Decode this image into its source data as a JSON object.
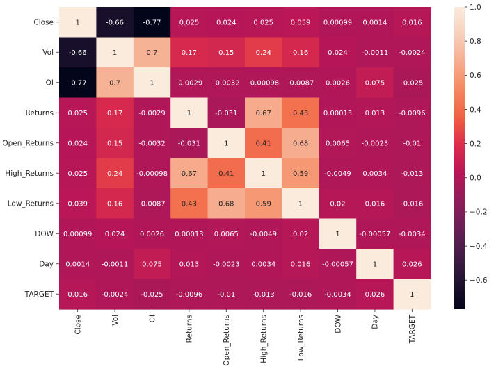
{
  "chart_data": {
    "type": "heatmap",
    "title": "",
    "xlabel": "",
    "ylabel": "",
    "labels": [
      "Close",
      "Vol",
      "OI",
      "Returns",
      "Open_Returns",
      "High_Returns",
      "Low_Returns",
      "DOW",
      "Day",
      "TARGET"
    ],
    "cell_text": [
      [
        "1",
        "-0.66",
        "-0.77",
        "0.025",
        "0.024",
        "0.025",
        "0.039",
        "0.00099",
        "0.0014",
        "0.016"
      ],
      [
        "-0.66",
        "1",
        "0.7",
        "0.17",
        "0.15",
        "0.24",
        "0.16",
        "0.024",
        "-0.0011",
        "-0.0024"
      ],
      [
        "-0.77",
        "0.7",
        "1",
        "-0.0029",
        "-0.0032",
        "-0.00098",
        "-0.0087",
        "0.0026",
        "0.075",
        "-0.025"
      ],
      [
        "0.025",
        "0.17",
        "-0.0029",
        "1",
        "-0.031",
        "0.67",
        "0.43",
        "0.00013",
        "0.013",
        "-0.0096"
      ],
      [
        "0.024",
        "0.15",
        "-0.0032",
        "-0.031",
        "1",
        "0.41",
        "0.68",
        "0.0065",
        "-0.0023",
        "-0.01"
      ],
      [
        "0.025",
        "0.24",
        "-0.00098",
        "0.67",
        "0.41",
        "1",
        "0.59",
        "-0.0049",
        "0.0034",
        "-0.013"
      ],
      [
        "0.039",
        "0.16",
        "-0.0087",
        "0.43",
        "0.68",
        "0.59",
        "1",
        "0.02",
        "0.016",
        "-0.016"
      ],
      [
        "0.00099",
        "0.024",
        "0.0026",
        "0.00013",
        "0.0065",
        "-0.0049",
        "0.02",
        "1",
        "-0.00057",
        "-0.0034"
      ],
      [
        "0.0014",
        "-0.0011",
        "0.075",
        "0.013",
        "-0.0023",
        "0.0034",
        "0.016",
        "-0.00057",
        "1",
        "0.026"
      ],
      [
        "0.016",
        "-0.0024",
        "-0.025",
        "-0.0096",
        "-0.01",
        "-0.013",
        "-0.016",
        "-0.0034",
        "0.026",
        "1"
      ]
    ],
    "colorbar": {
      "range": [
        -0.77,
        1.0
      ],
      "ticks": [
        -0.6,
        -0.4,
        -0.2,
        0.0,
        0.2,
        0.4,
        0.6,
        0.8,
        1.0
      ],
      "tick_labels": [
        "−0.6",
        "−0.4",
        "−0.2",
        "0.0",
        "0.2",
        "0.4",
        "0.6",
        "0.8",
        "1.0"
      ],
      "colormap": "rocket",
      "stops": [
        "#03051a",
        "#221331",
        "#451c47",
        "#6a1f56",
        "#921c5b",
        "#b91657",
        "#dc2d4b",
        "#f06043",
        "#f58860",
        "#f6ad8f",
        "#f7d0b9",
        "#faebdd"
      ]
    },
    "grid": false,
    "legend": "colorbar-right"
  }
}
